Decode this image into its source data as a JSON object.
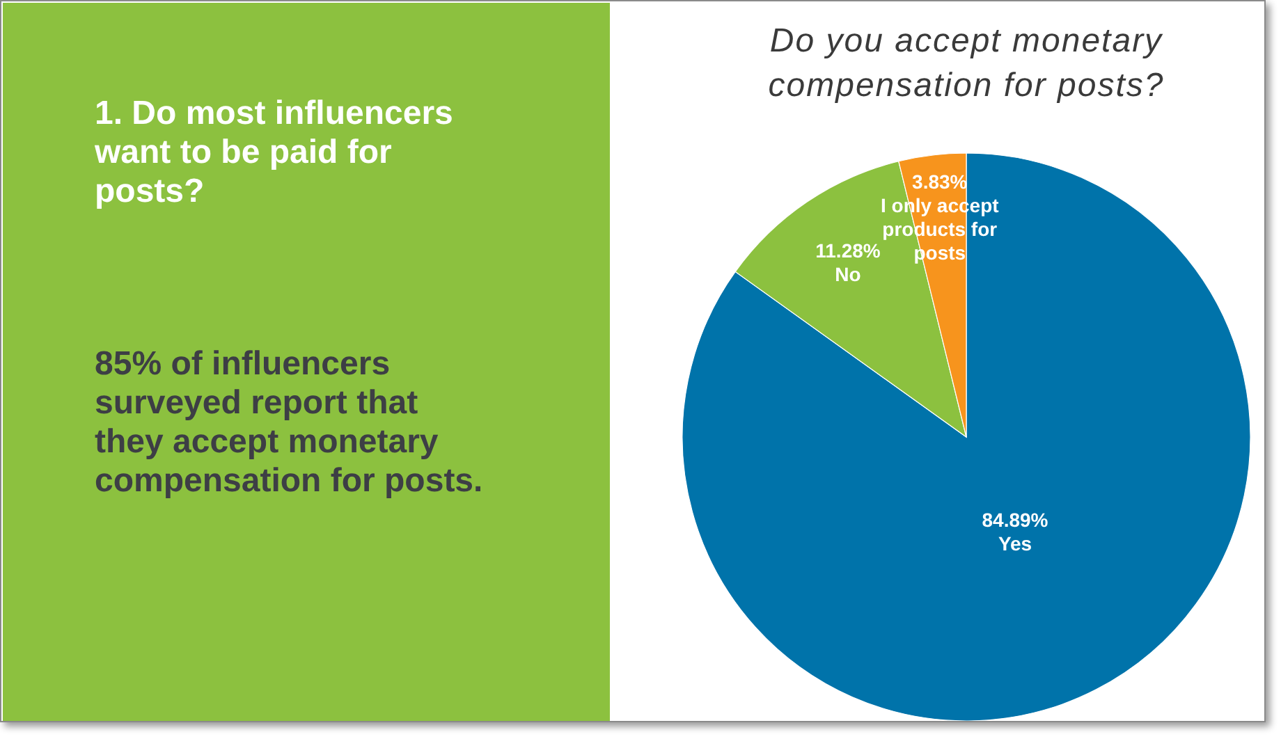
{
  "chart_data": [
    {
      "type": "other",
      "title": "1. Do most influencers want to be paid for posts?",
      "annotations": [
        "85% of influencers surveyed report that they accept monetary compensation for posts."
      ]
    },
    {
      "type": "pie",
      "title": "Do you accept monetary compensation for posts?",
      "categories": [
        "Yes",
        "No",
        "I only accept products for posts"
      ],
      "values": [
        84.89,
        11.28,
        3.83
      ],
      "colors": [
        "#0073aa",
        "#8cc13f",
        "#f7941d"
      ],
      "value_labels": [
        "84.89%",
        "11.28%",
        "3.83%"
      ]
    }
  ]
}
